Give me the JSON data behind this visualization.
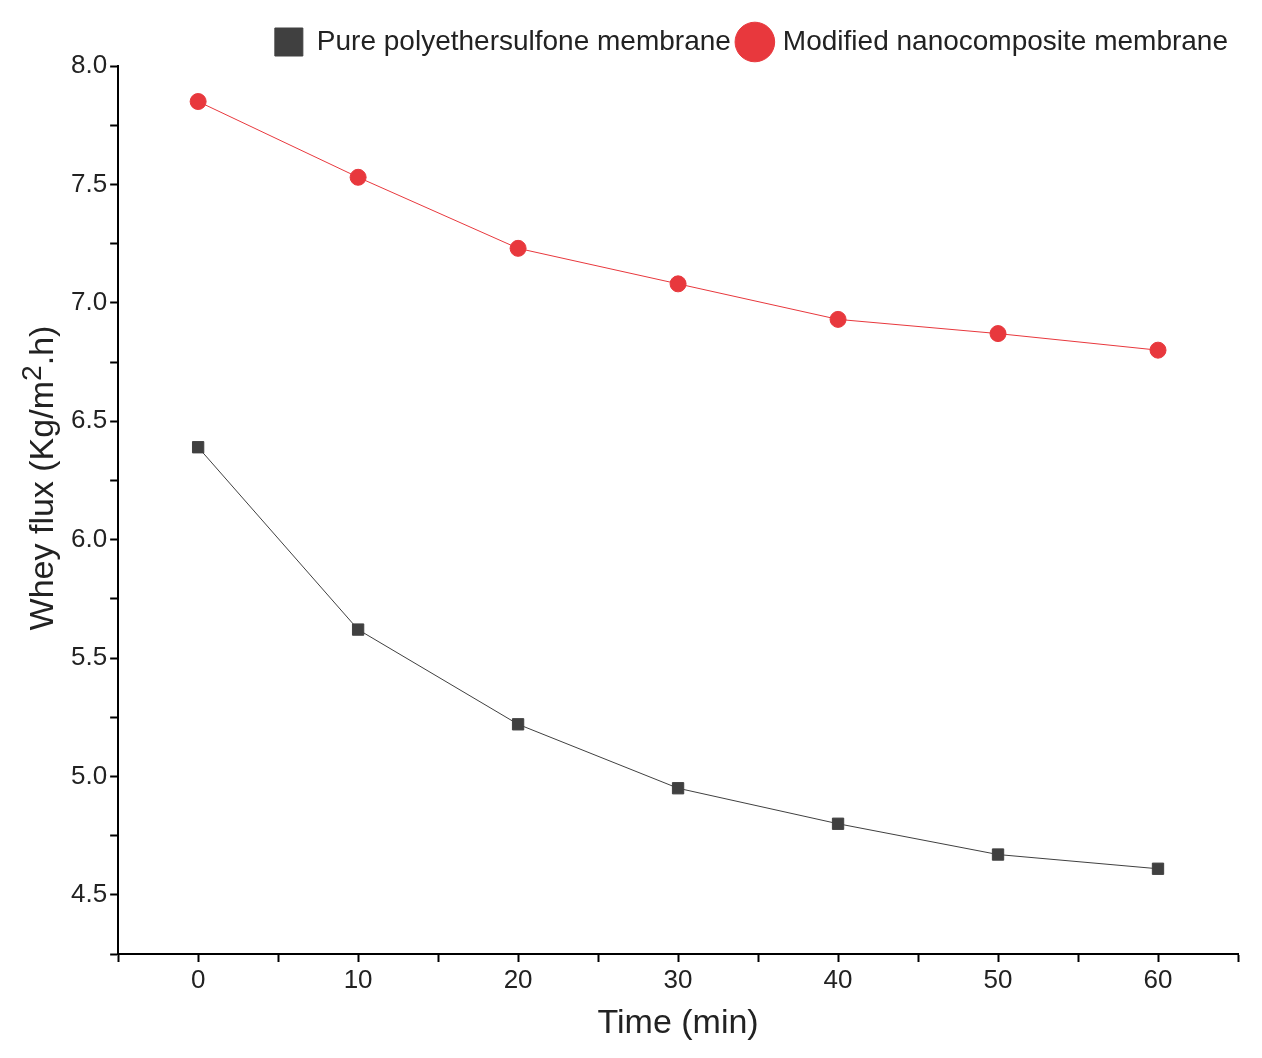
{
  "chart_data": {
    "type": "line",
    "xlabel": "Time (min)",
    "ylabel": "Whey flux (Kg/m$^{2}$.h)",
    "x": [
      0,
      10,
      20,
      30,
      40,
      50,
      60
    ],
    "series": [
      {
        "name": "Pure polyethersulfone membrane",
        "color": "#404040",
        "marker": "square",
        "values": [
          6.39,
          5.62,
          5.22,
          4.95,
          4.8,
          4.67,
          4.61
        ]
      },
      {
        "name": "Modified nanocomposite membrane",
        "color": "#e8383d",
        "marker": "circle",
        "values": [
          7.85,
          7.53,
          7.23,
          7.08,
          6.93,
          6.87,
          6.8
        ]
      }
    ],
    "xlim": [
      -5,
      65
    ],
    "xticks": [
      {
        "value": -5,
        "label": null
      },
      0,
      {
        "value": 5,
        "label": null
      },
      10,
      {
        "value": 15,
        "label": null
      },
      20,
      {
        "value": 25,
        "label": null
      },
      30,
      {
        "value": 35,
        "label": null
      },
      40,
      {
        "value": 45,
        "label": null
      },
      50,
      {
        "value": 55,
        "label": null
      },
      60,
      {
        "value": 65,
        "label": null
      }
    ],
    "ylim": [
      4.25,
      8.0
    ],
    "yticks": [
      {
        "value": 4.25,
        "label": null
      },
      4.5,
      {
        "value": 4.75,
        "label": null
      },
      {
        "value": 5,
        "label": "5.0"
      },
      {
        "value": 5.25,
        "label": null
      },
      5.5,
      {
        "value": 5.75,
        "label": null
      },
      {
        "value": 6,
        "label": "6.0"
      },
      {
        "value": 6.25,
        "label": null
      },
      6.5,
      {
        "value": 6.75,
        "label": null
      },
      {
        "value": 7,
        "label": "7.0"
      },
      {
        "value": 7.25,
        "label": null
      },
      7.5,
      {
        "value": 7.75,
        "label": null
      },
      {
        "value": 8,
        "label": "8.0"
      }
    ],
    "grid": false,
    "legend": "top right",
    "line_style": "solid"
  }
}
